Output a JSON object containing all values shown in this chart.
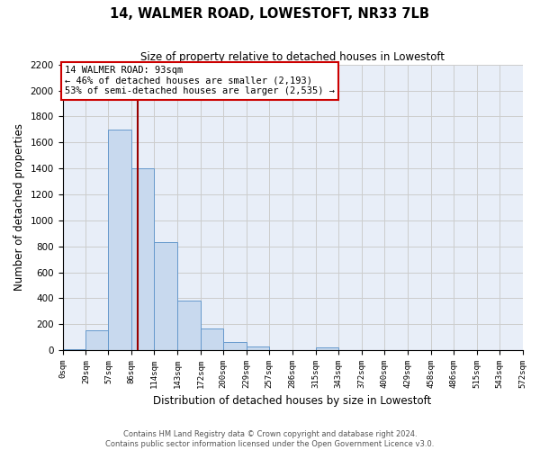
{
  "title": "14, WALMER ROAD, LOWESTOFT, NR33 7LB",
  "subtitle": "Size of property relative to detached houses in Lowestoft",
  "xlabel": "Distribution of detached houses by size in Lowestoft",
  "ylabel": "Number of detached properties",
  "bar_color": "#c8d9ee",
  "bar_edge_color": "#6699cc",
  "bins": [
    0,
    29,
    57,
    86,
    114,
    143,
    172,
    200,
    229,
    257,
    286,
    315,
    343,
    372,
    400,
    429,
    458,
    486,
    515,
    543,
    572
  ],
  "bin_labels": [
    "0sqm",
    "29sqm",
    "57sqm",
    "86sqm",
    "114sqm",
    "143sqm",
    "172sqm",
    "200sqm",
    "229sqm",
    "257sqm",
    "286sqm",
    "315sqm",
    "343sqm",
    "372sqm",
    "400sqm",
    "429sqm",
    "458sqm",
    "486sqm",
    "515sqm",
    "543sqm",
    "572sqm"
  ],
  "values": [
    10,
    155,
    1700,
    1400,
    830,
    385,
    165,
    65,
    30,
    0,
    0,
    25,
    0,
    0,
    0,
    0,
    0,
    0,
    0,
    0
  ],
  "property_line_x": 93,
  "annotation_title": "14 WALMER ROAD: 93sqm",
  "annotation_line1": "← 46% of detached houses are smaller (2,193)",
  "annotation_line2": "53% of semi-detached houses are larger (2,535) →",
  "ylim": [
    0,
    2200
  ],
  "yticks": [
    0,
    200,
    400,
    600,
    800,
    1000,
    1200,
    1400,
    1600,
    1800,
    2000,
    2200
  ],
  "grid_color": "#cccccc",
  "vline_color": "#990000",
  "footer_line1": "Contains HM Land Registry data © Crown copyright and database right 2024.",
  "footer_line2": "Contains public sector information licensed under the Open Government Licence v3.0.",
  "bg_color": "#e8eef8"
}
